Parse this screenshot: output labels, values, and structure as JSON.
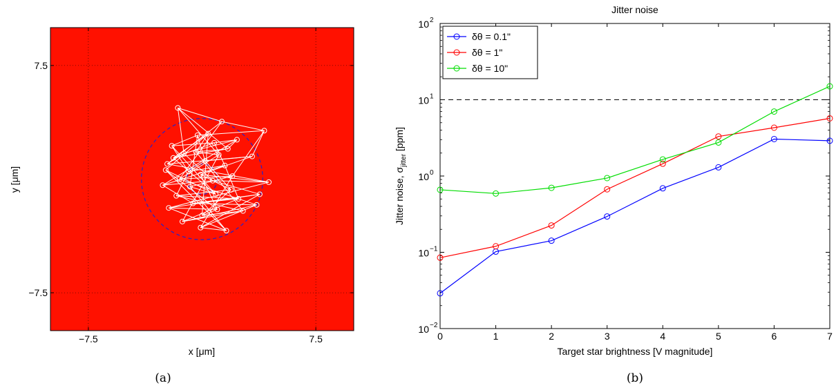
{
  "chart_data": [
    {
      "panel_caption": "(a)",
      "type": "scatter",
      "xlabel": "x [μm]",
      "ylabel": "y [μm]",
      "xlim": [
        -10,
        10
      ],
      "ylim": [
        -10,
        10
      ],
      "x_tick_labels": [
        "−7.5",
        "7.5"
      ],
      "y_tick_labels": [
        "7.5",
        "−7.5"
      ],
      "x_ticks": [
        -7.5,
        7.5
      ],
      "y_ticks": [
        7.5,
        -7.5
      ],
      "grid": true,
      "background_color": "#ff1100",
      "trace_color": "#ffffff",
      "circles": [
        {
          "center": [
            0,
            0
          ],
          "radius": 4.0,
          "style": "dashed",
          "color": "#2222cc"
        },
        {
          "center": [
            0,
            0
          ],
          "radius": 1.0,
          "style": "dashed",
          "color": "#2222cc"
        }
      ],
      "trace_points": [
        {
          "x": -1.6,
          "y": 4.7
        },
        {
          "x": 1.3,
          "y": 3.8
        },
        {
          "x": 4.1,
          "y": 3.2
        },
        {
          "x": -0.3,
          "y": 2.9
        },
        {
          "x": -2.0,
          "y": 2.2
        },
        {
          "x": 0.8,
          "y": 2.4
        },
        {
          "x": 2.3,
          "y": 2.6
        },
        {
          "x": -1.2,
          "y": 1.7
        },
        {
          "x": -2.3,
          "y": 1.0
        },
        {
          "x": 3.3,
          "y": 1.5
        },
        {
          "x": 0.2,
          "y": 1.2
        },
        {
          "x": -0.9,
          "y": 0.5
        },
        {
          "x": 1.5,
          "y": 0.9
        },
        {
          "x": -2.6,
          "y": -0.4
        },
        {
          "x": 0.7,
          "y": -0.1
        },
        {
          "x": 4.4,
          "y": -0.2
        },
        {
          "x": -0.1,
          "y": 0.3
        },
        {
          "x": 1.9,
          "y": -0.7
        },
        {
          "x": -1.7,
          "y": -1.1
        },
        {
          "x": 2.4,
          "y": -1.3
        },
        {
          "x": -0.6,
          "y": -1.6
        },
        {
          "x": 3.8,
          "y": -1.0
        },
        {
          "x": -2.2,
          "y": -1.9
        },
        {
          "x": 1.0,
          "y": -2.0
        },
        {
          "x": 0.0,
          "y": -2.4
        },
        {
          "x": 2.7,
          "y": -2.1
        },
        {
          "x": -1.3,
          "y": -2.8
        },
        {
          "x": 3.6,
          "y": -1.7
        },
        {
          "x": -0.1,
          "y": -3.2
        },
        {
          "x": 1.6,
          "y": -3.4
        },
        {
          "x": -2.4,
          "y": 0.6
        },
        {
          "x": 0.4,
          "y": 3.0
        },
        {
          "x": -0.4,
          "y": 1.8
        },
        {
          "x": 1.1,
          "y": 1.6
        },
        {
          "x": -1.5,
          "y": 0.0
        },
        {
          "x": 2.0,
          "y": 0.2
        },
        {
          "x": -0.8,
          "y": -0.5
        },
        {
          "x": 0.9,
          "y": -1.0
        },
        {
          "x": -1.9,
          "y": 1.4
        },
        {
          "x": 1.7,
          "y": 2.0
        }
      ]
    },
    {
      "panel_caption": "(b)",
      "type": "line",
      "title": "Jitter noise",
      "xlabel": "Target star brightness [V magnitude]",
      "ylabel": "Jitter noise, σ",
      "ylabel_sub": "jitter",
      "ylabel_unit": " [ppm]",
      "x": [
        0,
        1,
        2,
        3,
        4,
        5,
        6,
        7
      ],
      "xlim": [
        0,
        7
      ],
      "ylim": [
        0.01,
        100
      ],
      "yscale": "log",
      "x_tick_labels": [
        "0",
        "1",
        "2",
        "3",
        "4",
        "5",
        "6",
        "7"
      ],
      "y_tick_values": [
        0.01,
        0.1,
        1,
        10,
        100
      ],
      "y_tick_labels": [
        {
          "base": "10",
          "exp": "−2"
        },
        {
          "base": "10",
          "exp": "−1"
        },
        {
          "base": "10",
          "exp": "0"
        },
        {
          "base": "10",
          "exp": "1"
        },
        {
          "base": "10",
          "exp": "2"
        }
      ],
      "legend_position": "top-left",
      "reference_line": {
        "y": 10,
        "style": "dashed",
        "color": "#000000"
      },
      "series": [
        {
          "name": "δθ = 0.1\"",
          "color": "#0000ff",
          "values": [
            0.029,
            0.102,
            0.142,
            0.295,
            0.69,
            1.3,
            3.05,
            2.9
          ]
        },
        {
          "name": "δθ = 1\"",
          "color": "#ff0000",
          "values": [
            0.085,
            0.12,
            0.225,
            0.67,
            1.45,
            3.3,
            4.3,
            5.7
          ]
        },
        {
          "name": "δθ = 10\"",
          "color": "#00dd00",
          "values": [
            0.66,
            0.59,
            0.7,
            0.94,
            1.65,
            2.75,
            7.0,
            15.0
          ]
        }
      ]
    }
  ]
}
